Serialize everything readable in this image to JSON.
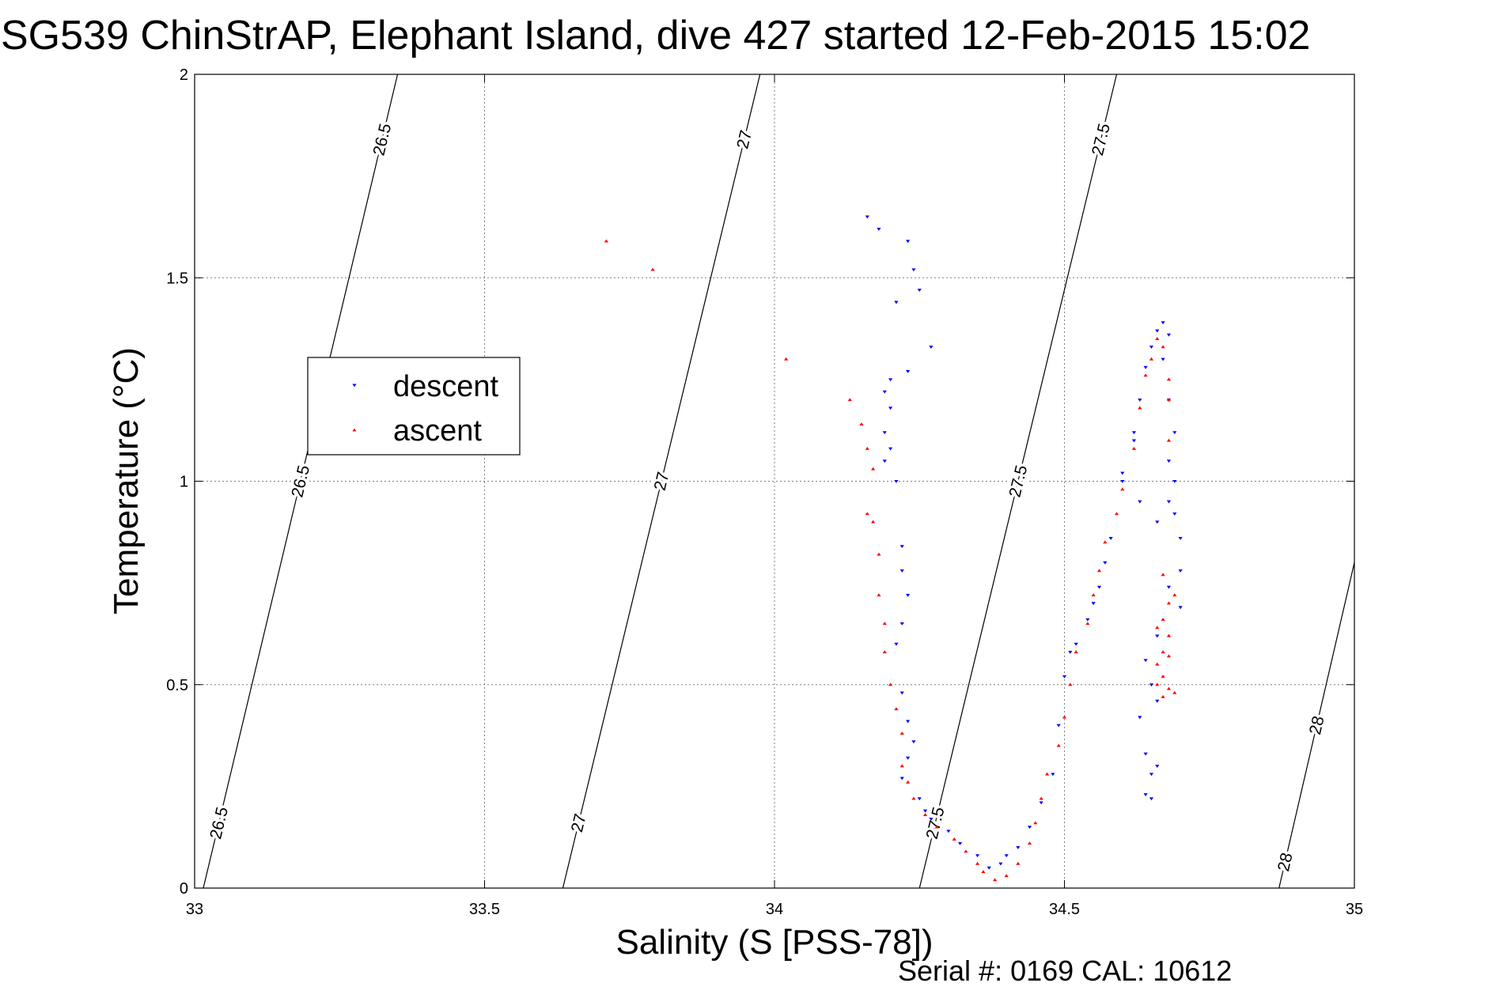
{
  "title": "SG539 ChinStrAP, Elephant Island, dive 427 started 12-Feb-2015 15:02",
  "footer": "Serial #: 0169 CAL: 10612",
  "colors": {
    "descent": "#0000ff",
    "ascent": "#ff0000",
    "grid": "#7f7f7f",
    "contour": "#000000"
  },
  "chart_data": {
    "type": "scatter",
    "xlabel": "Salinity (S [PSS-78])",
    "ylabel": "Temperature (°C)",
    "xlim": [
      33,
      35
    ],
    "ylim": [
      0,
      2
    ],
    "xticks": [
      "33",
      "33.5",
      "34",
      "34.5",
      "35"
    ],
    "yticks": [
      "0",
      "0.5",
      "1",
      "1.5",
      "2"
    ],
    "grid": true,
    "legend": {
      "position": "left",
      "entries": [
        "descent",
        "ascent"
      ]
    },
    "density_contours": [
      {
        "label": "26.5",
        "points": [
          [
            33.015,
            0.0
          ],
          [
            33.35,
            2.0
          ]
        ]
      },
      {
        "label": "27",
        "points": [
          [
            33.635,
            0.0
          ],
          [
            33.975,
            2.0
          ]
        ]
      },
      {
        "label": "27.5",
        "points": [
          [
            34.25,
            0.0
          ],
          [
            34.59,
            2.0
          ]
        ]
      },
      {
        "label": "28",
        "points": [
          [
            34.87,
            0.0
          ],
          [
            35.0,
            0.8
          ]
        ]
      }
    ],
    "series": [
      {
        "name": "descent",
        "marker": "triangle-down",
        "points": [
          [
            34.16,
            1.65
          ],
          [
            34.18,
            1.62
          ],
          [
            34.23,
            1.59
          ],
          [
            34.24,
            1.52
          ],
          [
            34.25,
            1.47
          ],
          [
            34.21,
            1.44
          ],
          [
            34.27,
            1.33
          ],
          [
            34.23,
            1.27
          ],
          [
            34.2,
            1.25
          ],
          [
            34.19,
            1.22
          ],
          [
            34.2,
            1.18
          ],
          [
            34.19,
            1.12
          ],
          [
            34.2,
            1.08
          ],
          [
            34.19,
            1.05
          ],
          [
            34.21,
            1.0
          ],
          [
            34.22,
            0.84
          ],
          [
            34.22,
            0.78
          ],
          [
            34.23,
            0.72
          ],
          [
            34.22,
            0.65
          ],
          [
            34.21,
            0.6
          ],
          [
            34.22,
            0.48
          ],
          [
            34.23,
            0.41
          ],
          [
            34.24,
            0.36
          ],
          [
            34.23,
            0.32
          ],
          [
            34.22,
            0.27
          ],
          [
            34.25,
            0.22
          ],
          [
            34.26,
            0.19
          ],
          [
            34.27,
            0.17
          ],
          [
            34.3,
            0.14
          ],
          [
            34.32,
            0.11
          ],
          [
            34.35,
            0.08
          ],
          [
            34.37,
            0.05
          ],
          [
            34.39,
            0.06
          ],
          [
            34.4,
            0.08
          ],
          [
            34.42,
            0.1
          ],
          [
            34.44,
            0.15
          ],
          [
            34.46,
            0.21
          ],
          [
            34.48,
            0.28
          ],
          [
            34.49,
            0.4
          ],
          [
            34.5,
            0.52
          ],
          [
            34.51,
            0.58
          ],
          [
            34.52,
            0.6
          ],
          [
            34.54,
            0.66
          ],
          [
            34.55,
            0.7
          ],
          [
            34.56,
            0.74
          ],
          [
            34.57,
            0.8
          ],
          [
            34.58,
            0.86
          ],
          [
            34.6,
            1.0
          ],
          [
            34.62,
            1.12
          ],
          [
            34.63,
            1.2
          ],
          [
            34.64,
            1.28
          ],
          [
            34.65,
            1.33
          ],
          [
            34.66,
            1.37
          ],
          [
            34.67,
            1.39
          ],
          [
            34.68,
            1.36
          ],
          [
            34.67,
            1.3
          ],
          [
            34.68,
            1.2
          ],
          [
            34.69,
            1.12
          ],
          [
            34.68,
            1.05
          ],
          [
            34.69,
            1.0
          ],
          [
            34.68,
            0.95
          ],
          [
            34.69,
            0.92
          ],
          [
            34.66,
            0.9
          ],
          [
            34.7,
            0.86
          ],
          [
            34.7,
            0.78
          ],
          [
            34.68,
            0.74
          ],
          [
            34.7,
            0.69
          ],
          [
            34.66,
            0.62
          ],
          [
            34.64,
            0.56
          ],
          [
            34.65,
            0.5
          ],
          [
            34.66,
            0.46
          ],
          [
            34.63,
            0.42
          ],
          [
            34.64,
            0.33
          ],
          [
            34.65,
            0.28
          ],
          [
            34.64,
            0.23
          ],
          [
            34.65,
            0.22
          ],
          [
            34.66,
            0.3
          ],
          [
            34.62,
            1.1
          ],
          [
            34.6,
            1.02
          ],
          [
            34.63,
            0.95
          ]
        ]
      },
      {
        "name": "ascent",
        "marker": "triangle-up",
        "points": [
          [
            33.71,
            1.59
          ],
          [
            33.79,
            1.52
          ],
          [
            34.02,
            1.3
          ],
          [
            34.13,
            1.2
          ],
          [
            34.15,
            1.14
          ],
          [
            34.16,
            1.08
          ],
          [
            34.17,
            1.03
          ],
          [
            34.16,
            0.92
          ],
          [
            34.17,
            0.9
          ],
          [
            34.18,
            0.82
          ],
          [
            34.18,
            0.72
          ],
          [
            34.19,
            0.65
          ],
          [
            34.19,
            0.58
          ],
          [
            34.2,
            0.5
          ],
          [
            34.21,
            0.44
          ],
          [
            34.22,
            0.38
          ],
          [
            34.22,
            0.3
          ],
          [
            34.23,
            0.26
          ],
          [
            34.24,
            0.22
          ],
          [
            34.26,
            0.18
          ],
          [
            34.28,
            0.15
          ],
          [
            34.31,
            0.12
          ],
          [
            34.33,
            0.09
          ],
          [
            34.35,
            0.06
          ],
          [
            34.36,
            0.04
          ],
          [
            34.38,
            0.02
          ],
          [
            34.4,
            0.03
          ],
          [
            34.42,
            0.06
          ],
          [
            34.44,
            0.11
          ],
          [
            34.45,
            0.16
          ],
          [
            34.46,
            0.22
          ],
          [
            34.47,
            0.28
          ],
          [
            34.49,
            0.35
          ],
          [
            34.5,
            0.42
          ],
          [
            34.51,
            0.5
          ],
          [
            34.52,
            0.58
          ],
          [
            34.54,
            0.65
          ],
          [
            34.55,
            0.72
          ],
          [
            34.56,
            0.78
          ],
          [
            34.57,
            0.85
          ],
          [
            34.59,
            0.92
          ],
          [
            34.6,
            0.98
          ],
          [
            34.62,
            1.08
          ],
          [
            34.63,
            1.18
          ],
          [
            34.64,
            1.26
          ],
          [
            34.65,
            1.3
          ],
          [
            34.66,
            1.35
          ],
          [
            34.67,
            1.33
          ],
          [
            34.68,
            1.25
          ],
          [
            34.68,
            1.2
          ],
          [
            34.68,
            1.1
          ],
          [
            34.67,
            0.77
          ],
          [
            34.68,
            0.7
          ],
          [
            34.67,
            0.66
          ],
          [
            34.68,
            0.62
          ],
          [
            34.67,
            0.58
          ],
          [
            34.66,
            0.55
          ],
          [
            34.67,
            0.52
          ],
          [
            34.68,
            0.49
          ],
          [
            34.67,
            0.47
          ],
          [
            34.69,
            0.48
          ],
          [
            34.66,
            0.64
          ],
          [
            34.69,
            0.72
          ],
          [
            34.68,
            0.57
          ],
          [
            34.66,
            0.5
          ]
        ]
      }
    ]
  }
}
